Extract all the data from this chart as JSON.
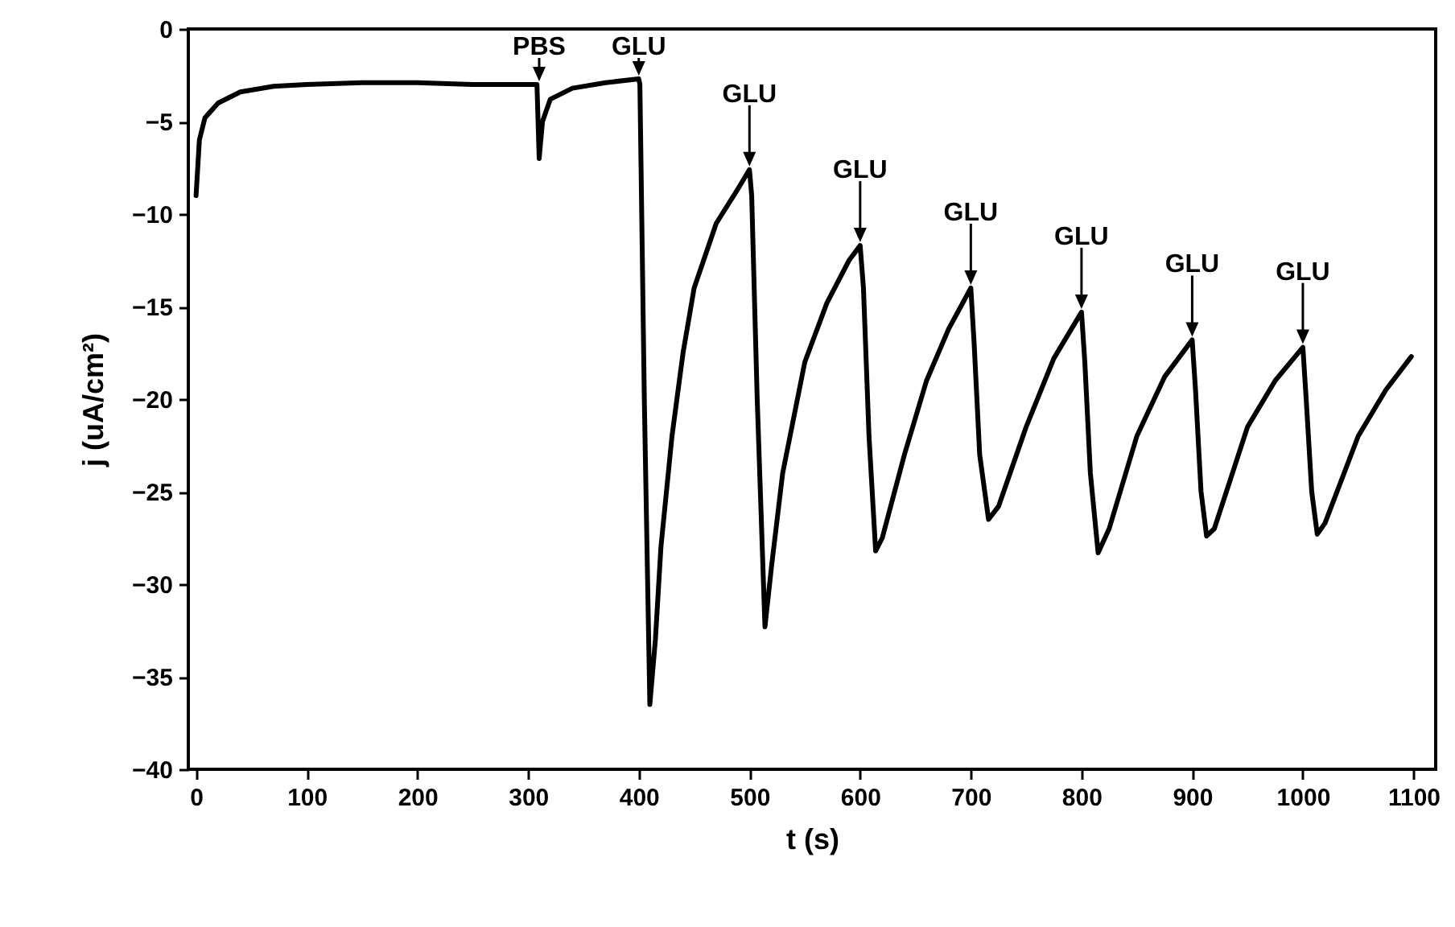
{
  "chart_data": {
    "type": "line",
    "xlabel": "t (s)",
    "ylabel": "j (uA/cm²)",
    "xlim": [
      -7,
      1120
    ],
    "ylim": [
      -40,
      0
    ],
    "xticks": [
      0,
      100,
      200,
      300,
      400,
      500,
      600,
      700,
      800,
      900,
      1000,
      1100
    ],
    "yticks": [
      -40,
      -35,
      -30,
      -25,
      -20,
      -15,
      -10,
      -5,
      0
    ],
    "grid": false,
    "marker": "none",
    "line_style": "solid",
    "x": [
      0,
      3,
      8,
      20,
      40,
      70,
      100,
      150,
      200,
      250,
      300,
      308,
      310,
      313,
      320,
      340,
      370,
      400,
      401,
      405,
      410,
      415,
      420,
      430,
      440,
      450,
      470,
      490,
      500,
      502,
      507,
      514,
      520,
      530,
      550,
      570,
      590,
      600,
      603,
      608,
      614,
      620,
      640,
      660,
      680,
      700,
      703,
      708,
      716,
      725,
      750,
      775,
      800,
      803,
      808,
      815,
      825,
      850,
      875,
      900,
      903,
      908,
      913,
      920,
      950,
      975,
      1000,
      1003,
      1008,
      1013,
      1020,
      1050,
      1075,
      1098
    ],
    "series": [
      {
        "color": "#000000",
        "values": [
          -9,
          -6,
          -4.8,
          -4,
          -3.4,
          -3.1,
          -3,
          -2.9,
          -2.9,
          -3,
          -3,
          -3,
          -7,
          -5,
          -3.8,
          -3.2,
          -2.9,
          -2.7,
          -3,
          -20,
          -36.5,
          -33,
          -28,
          -22,
          -17.5,
          -14,
          -10.5,
          -8.6,
          -7.6,
          -9,
          -20,
          -32.3,
          -29,
          -24,
          -18,
          -14.8,
          -12.5,
          -11.7,
          -14,
          -22,
          -28.2,
          -27.5,
          -23,
          -19,
          -16.2,
          -14,
          -17,
          -23,
          -26.5,
          -25.8,
          -21.5,
          -17.8,
          -15.3,
          -18,
          -24,
          -28.3,
          -27,
          -22,
          -18.8,
          -16.8,
          -19.5,
          -25,
          -27.4,
          -27,
          -21.5,
          -19,
          -17.2,
          -20,
          -25,
          -27.3,
          -26.7,
          -22,
          -19.5,
          -17.7
        ]
      }
    ],
    "annotations": [
      {
        "text": "PBS",
        "x": 310,
        "y": -3
      },
      {
        "text": "GLU",
        "x": 400,
        "y": -2.7
      },
      {
        "text": "GLU",
        "x": 500,
        "y": -7.6
      },
      {
        "text": "GLU",
        "x": 600,
        "y": -11.7
      },
      {
        "text": "GLU",
        "x": 700,
        "y": -14
      },
      {
        "text": "GLU",
        "x": 800,
        "y": -15.3
      },
      {
        "text": "GLU",
        "x": 900,
        "y": -16.8
      },
      {
        "text": "GLU",
        "x": 1000,
        "y": -17.2
      }
    ]
  }
}
